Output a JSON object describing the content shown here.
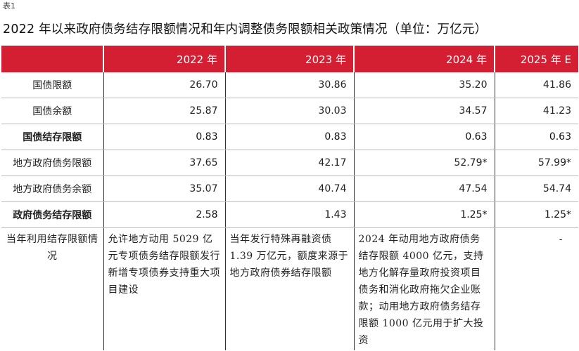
{
  "caption": "表1",
  "title": "2022 年以来政府债务结存限额情况和年内调整债务限额相关政策情况（单位：万亿元）",
  "table": {
    "headers": [
      "",
      "2022 年",
      "2023 年",
      "2024 年",
      "2025 年 E"
    ],
    "rows": [
      {
        "label": "国债限额",
        "values": [
          "26.70",
          "30.86",
          "35.20",
          "41.86"
        ],
        "bold": false
      },
      {
        "label": "国债余额",
        "values": [
          "25.87",
          "30.03",
          "34.57",
          "41.23"
        ],
        "bold": false
      },
      {
        "label": "国债结存限额",
        "values": [
          "0.83",
          "0.83",
          "0.63",
          "0.63"
        ],
        "bold": true
      },
      {
        "label": "地方政府债务限额",
        "values": [
          "37.65",
          "42.17",
          "52.79*",
          "57.99*"
        ],
        "bold": false
      },
      {
        "label": "地方政府债务余额",
        "values": [
          "35.07",
          "40.74",
          "47.54",
          "54.74"
        ],
        "bold": false
      },
      {
        "label": "政府债务结存限额",
        "values": [
          "2.58",
          "1.43",
          "1.25*",
          "1.25*"
        ],
        "bold": true
      }
    ],
    "text_row": {
      "label": "当年利用结存限额情况",
      "values": [
        "允许地方动用 5029 亿元专项债务结存限额发行新增专项债券支持重大项目建设",
        "当年发行特殊再融资债 1.39 万亿元，额度来源于地方政府债券结存限额",
        "2024 年动用地方政府债务结存限额 4000 亿元，支持地方化解存量政府投资项目债务和消化政府拖欠企业账款；动用地方政府债务结存限额 1000 亿元用于扩大投资",
        "-"
      ]
    }
  }
}
